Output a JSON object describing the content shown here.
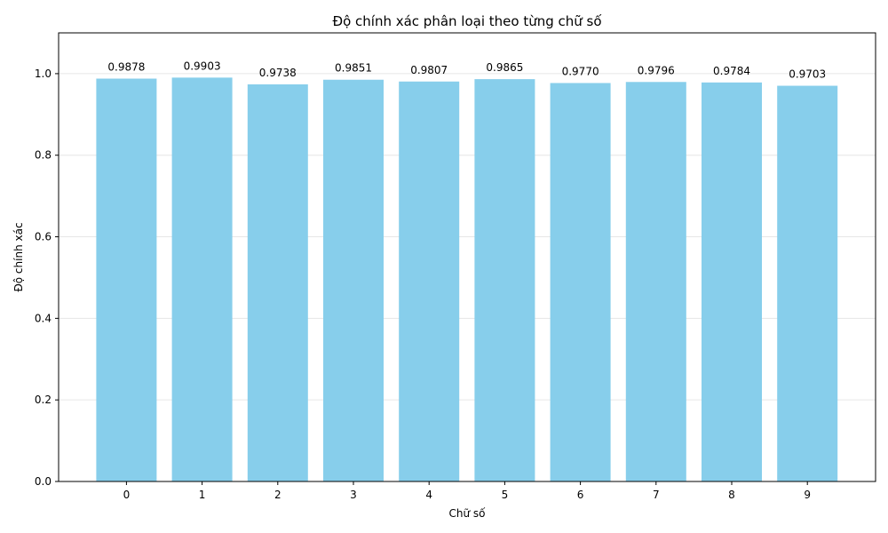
{
  "chart_data": {
    "type": "bar",
    "title": "Độ chính xác phân loại theo từng chữ số",
    "xlabel": "Chữ số",
    "ylabel": "Độ chính xác",
    "categories": [
      "0",
      "1",
      "2",
      "3",
      "4",
      "5",
      "6",
      "7",
      "8",
      "9"
    ],
    "values": [
      0.9878,
      0.9903,
      0.9738,
      0.9851,
      0.9807,
      0.9865,
      0.977,
      0.9796,
      0.9784,
      0.9703
    ],
    "value_labels": [
      "0.9878",
      "0.9903",
      "0.9738",
      "0.9851",
      "0.9807",
      "0.9865",
      "0.9770",
      "0.9796",
      "0.9784",
      "0.9703"
    ],
    "ylim": [
      0,
      1.1
    ],
    "yticks": [
      0.0,
      0.2,
      0.4,
      0.6,
      0.8,
      1.0
    ],
    "ytick_labels": [
      "0.0",
      "0.2",
      "0.4",
      "0.6",
      "0.8",
      "1.0"
    ],
    "grid": "y",
    "bar_color": "#87CEEB",
    "grid_color": "#e6e6e6"
  }
}
